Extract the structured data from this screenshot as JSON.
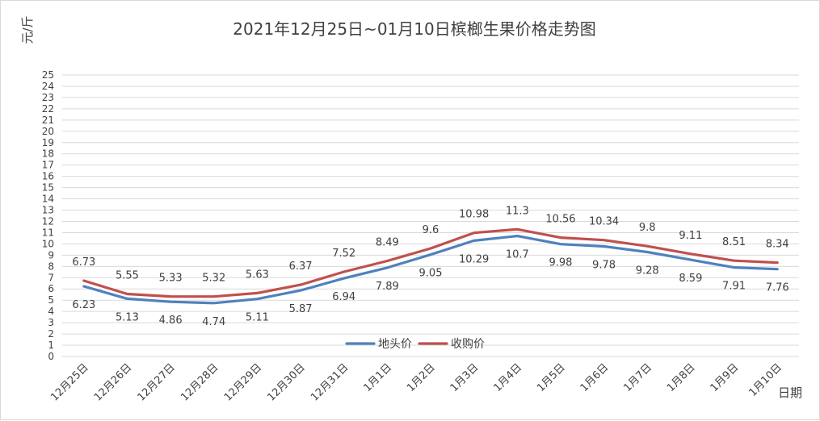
{
  "chart_data": {
    "type": "line",
    "title": "2021年12月25日~01月10日槟榔生果价格走势图",
    "ylabel": "元/斤",
    "xlabel": "日期",
    "ylim": [
      0,
      25
    ],
    "ytick_step": 1,
    "grid": true,
    "legend_position": "inside-bottom-center",
    "categories": [
      "12月25日",
      "12月26日",
      "12月27日",
      "12月28日",
      "12月29日",
      "12月30日",
      "12月31日",
      "1月1日",
      "1月2日",
      "1月3日",
      "1月4日",
      "1月5日",
      "1月6日",
      "1月7日",
      "1月8日",
      "1月9日",
      "1月10日"
    ],
    "series": [
      {
        "name": "地头价",
        "color": "#4f81bd",
        "values": [
          6.23,
          5.13,
          4.86,
          4.74,
          5.11,
          5.87,
          6.94,
          7.89,
          9.05,
          10.29,
          10.7,
          9.98,
          9.78,
          9.28,
          8.59,
          7.91,
          7.76
        ],
        "labels": [
          "6.23",
          "5.13",
          "4.86",
          "4.74",
          "5.11",
          "5.87",
          "6.94",
          "7.89",
          "9.05",
          "10.29",
          "10.7",
          "9.98",
          "9.78",
          "9.28",
          "8.59",
          "7.91",
          "7.76"
        ]
      },
      {
        "name": "收购价",
        "color": "#c0504d",
        "values": [
          6.73,
          5.55,
          5.33,
          5.32,
          5.63,
          6.37,
          7.52,
          8.49,
          9.6,
          10.98,
          11.3,
          10.56,
          10.34,
          9.8,
          9.11,
          8.51,
          8.34
        ],
        "labels": [
          "6.73",
          "5.55",
          "5.33",
          "5.32",
          "5.63",
          "6.37",
          "7.52",
          "8.49",
          "9.6",
          "10.98",
          "11.3",
          "10.56",
          "10.34",
          "9.8",
          "9.11",
          "8.51",
          "8.34"
        ]
      }
    ]
  }
}
